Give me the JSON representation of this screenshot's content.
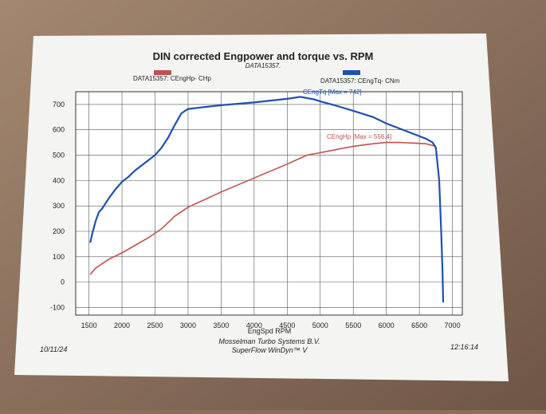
{
  "chart_data": {
    "type": "line",
    "title": "DIN corrected Engpower and torque vs. RPM",
    "subtitle": "DATA15357.",
    "x_label": "EngSpd  RPM",
    "footer_lines": [
      "Mosselman Turbo Systems B.V.",
      "SuperFlow WinDyn™ V"
    ],
    "date": "10/11/24",
    "time": "12:16:14",
    "xlim": [
      1300,
      7150
    ],
    "xticks": [
      1500,
      2000,
      2500,
      3000,
      3500,
      4000,
      4500,
      5000,
      5500,
      6000,
      6500,
      7000
    ],
    "ylim": [
      -130,
      750
    ],
    "yticks": [
      -100,
      0,
      100,
      200,
      300,
      400,
      500,
      600,
      700
    ],
    "grid": true,
    "series": [
      {
        "name": "DATA15357: CEngHp-  CHp",
        "color": "#c0504d",
        "annotation": "CEngHp [Max = 556.4]",
        "x": [
          1520,
          1600,
          1800,
          2000,
          2200,
          2400,
          2600,
          2800,
          3000,
          3500,
          4000,
          4500,
          4800,
          5000,
          5200,
          5500,
          5800,
          6000,
          6200,
          6400,
          6600,
          6750
        ],
        "values": [
          30,
          55,
          90,
          115,
          145,
          175,
          210,
          260,
          295,
          355,
          410,
          465,
          500,
          510,
          520,
          535,
          545,
          550,
          550,
          548,
          545,
          535
        ]
      },
      {
        "name": "DATA15357: CEngTq-  CNm",
        "color": "#1f4fb5",
        "annotation": "CEngTq [Max = 742]",
        "x": [
          1520,
          1550,
          1600,
          1650,
          1700,
          1800,
          1900,
          2000,
          2100,
          2200,
          2300,
          2400,
          2500,
          2600,
          2700,
          2800,
          2900,
          3000,
          3200,
          3500,
          4000,
          4500,
          4700,
          4900,
          5000,
          5200,
          5500,
          5800,
          6000,
          6200,
          6400,
          6600,
          6700,
          6750,
          6800,
          6830,
          6850,
          6860
        ],
        "values": [
          155,
          190,
          240,
          275,
          290,
          330,
          365,
          395,
          415,
          440,
          460,
          480,
          500,
          530,
          570,
          620,
          665,
          682,
          688,
          697,
          708,
          722,
          730,
          720,
          712,
          698,
          675,
          650,
          625,
          605,
          585,
          565,
          550,
          530,
          400,
          200,
          50,
          -80
        ]
      }
    ]
  }
}
